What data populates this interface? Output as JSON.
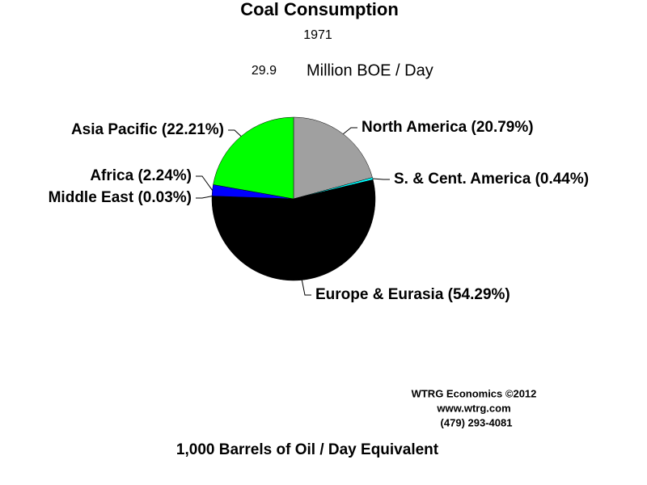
{
  "chart_data": {
    "type": "pie",
    "title": "Coal Consumption",
    "subtitle": "1971",
    "total": 29.9,
    "total_unit": "Million BOE / Day",
    "value_labels": [
      "North America (20.79%)",
      "S. & Cent. America (0.44%)",
      "Europe & Eurasia (54.29%)",
      "Middle East (0.03%)",
      "Africa (2.24%)",
      "Asia Pacific (22.21%)"
    ],
    "values": [
      20.79,
      0.44,
      54.29,
      0.03,
      2.24,
      22.21
    ],
    "colors": [
      "#a0a0a0",
      "#00ffff",
      "#000000",
      "#ff0000",
      "#0000ff",
      "#00ff00"
    ],
    "xlabel": "1,000 Barrels of Oil / Day Equivalent",
    "credits": [
      "WTRG Economics  ©2012",
      "www.wtrg.com",
      "(479) 293-4081"
    ]
  }
}
